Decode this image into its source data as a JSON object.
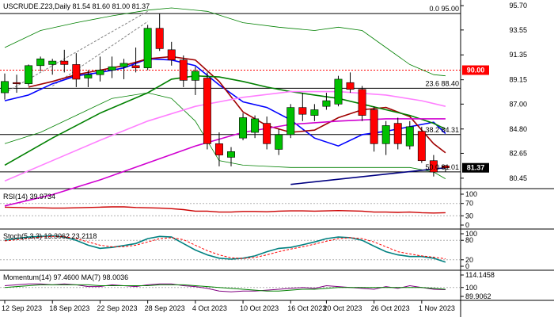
{
  "chart_data": {
    "type": "candlestick",
    "symbol_title": "USCRUDE.Z23,Daily  81.54 81.60 81.00 81.37",
    "dates": [
      "12 Sep 2023",
      "18 Sep 2023",
      "22 Sep 2023",
      "28 Sep 2023",
      "4 Oct 2023",
      "10 Oct 2023",
      "16 Oct 2023",
      "20 Oct 2023",
      "26 Oct 2023",
      "1 Nov 2023"
    ],
    "price_ticks": [
      "95.70",
      "93.55",
      "91.35",
      "89.15",
      "87.00",
      "84.80",
      "82.65",
      "80.45"
    ],
    "price_range": [
      79.6,
      96.2
    ],
    "candles": [
      {
        "o": 88.0,
        "h": 89.7,
        "l": 87.4,
        "c": 89.0
      },
      {
        "o": 88.9,
        "h": 89.6,
        "l": 88.0,
        "c": 88.8
      },
      {
        "o": 88.8,
        "h": 90.5,
        "l": 88.6,
        "c": 90.4
      },
      {
        "o": 90.4,
        "h": 91.2,
        "l": 89.9,
        "c": 91.0
      },
      {
        "o": 90.5,
        "h": 91.0,
        "l": 89.6,
        "c": 90.8
      },
      {
        "o": 90.8,
        "h": 91.8,
        "l": 89.8,
        "c": 90.5
      },
      {
        "o": 90.5,
        "h": 91.5,
        "l": 88.5,
        "c": 89.2
      },
      {
        "o": 89.3,
        "h": 90.0,
        "l": 88.5,
        "c": 89.6
      },
      {
        "o": 89.6,
        "h": 91.2,
        "l": 89.0,
        "c": 90.0
      },
      {
        "o": 90.0,
        "h": 91.2,
        "l": 89.3,
        "c": 90.3
      },
      {
        "o": 90.3,
        "h": 91.0,
        "l": 89.2,
        "c": 90.6
      },
      {
        "o": 90.4,
        "h": 92.0,
        "l": 89.8,
        "c": 90.2
      },
      {
        "o": 90.2,
        "h": 94.0,
        "l": 90.0,
        "c": 93.7
      },
      {
        "o": 93.7,
        "h": 95.0,
        "l": 91.7,
        "c": 91.9
      },
      {
        "o": 91.8,
        "h": 92.5,
        "l": 90.4,
        "c": 90.9
      },
      {
        "o": 90.9,
        "h": 91.3,
        "l": 88.5,
        "c": 89.1
      },
      {
        "o": 89.1,
        "h": 90.3,
        "l": 87.8,
        "c": 89.9
      },
      {
        "o": 89.3,
        "h": 89.8,
        "l": 83.0,
        "c": 83.5
      },
      {
        "o": 83.5,
        "h": 84.5,
        "l": 81.5,
        "c": 82.5
      },
      {
        "o": 82.3,
        "h": 83.2,
        "l": 81.5,
        "c": 82.8
      },
      {
        "o": 84.0,
        "h": 86.2,
        "l": 83.8,
        "c": 85.8
      },
      {
        "o": 84.5,
        "h": 86.0,
        "l": 84.0,
        "c": 85.7
      },
      {
        "o": 85.3,
        "h": 85.9,
        "l": 83.0,
        "c": 83.5
      },
      {
        "o": 83.0,
        "h": 84.8,
        "l": 82.5,
        "c": 84.3
      },
      {
        "o": 84.3,
        "h": 87.0,
        "l": 84.0,
        "c": 86.7
      },
      {
        "o": 86.7,
        "h": 88.0,
        "l": 85.5,
        "c": 86.1
      },
      {
        "o": 86.0,
        "h": 87.0,
        "l": 85.5,
        "c": 86.5
      },
      {
        "o": 86.8,
        "h": 88.0,
        "l": 86.5,
        "c": 87.3
      },
      {
        "o": 87.0,
        "h": 89.5,
        "l": 86.8,
        "c": 89.2
      },
      {
        "o": 88.9,
        "h": 89.8,
        "l": 88.0,
        "c": 88.3
      },
      {
        "o": 88.3,
        "h": 88.6,
        "l": 85.5,
        "c": 86.0
      },
      {
        "o": 86.5,
        "h": 86.8,
        "l": 82.8,
        "c": 83.5
      },
      {
        "o": 83.5,
        "h": 85.5,
        "l": 82.5,
        "c": 85.1
      },
      {
        "o": 85.3,
        "h": 85.8,
        "l": 83.0,
        "c": 83.5
      },
      {
        "o": 83.3,
        "h": 85.5,
        "l": 83.0,
        "c": 85.0
      },
      {
        "o": 84.6,
        "h": 85.0,
        "l": 81.8,
        "c": 82.0
      },
      {
        "o": 82.0,
        "h": 82.5,
        "l": 80.6,
        "c": 81.0
      },
      {
        "o": 81.54,
        "h": 81.6,
        "l": 81.0,
        "c": 81.37
      }
    ],
    "series_moving_averages": [
      {
        "color": "#0000ff",
        "points": [
          [
            0,
            87.3
          ],
          [
            2,
            87.8
          ],
          [
            4,
            88.8
          ],
          [
            6,
            89.5
          ],
          [
            8,
            89.8
          ],
          [
            10,
            90.2
          ],
          [
            12,
            91.0
          ],
          [
            14,
            90.9
          ],
          [
            16,
            90.4
          ],
          [
            18,
            88.7
          ],
          [
            20,
            87.2
          ],
          [
            22,
            86.7
          ],
          [
            24,
            85.6
          ],
          [
            26,
            84.0
          ],
          [
            28,
            83.3
          ],
          [
            30,
            84.3
          ],
          [
            32,
            84.6
          ],
          [
            34,
            85.0
          ],
          [
            36,
            85.4
          ],
          [
            37,
            84.4
          ]
        ]
      },
      {
        "color": "#a00000",
        "points": [
          [
            2,
            88.5
          ],
          [
            4,
            89.0
          ],
          [
            6,
            89.6
          ],
          [
            8,
            90.0
          ],
          [
            10,
            90.4
          ],
          [
            12,
            91.0
          ],
          [
            14,
            91.2
          ],
          [
            16,
            90.9
          ],
          [
            18,
            89.0
          ],
          [
            20,
            86.3
          ],
          [
            22,
            85.1
          ],
          [
            24,
            84.5
          ],
          [
            26,
            84.7
          ],
          [
            28,
            85.8
          ],
          [
            30,
            86.5
          ],
          [
            32,
            86.7
          ],
          [
            34,
            85.9
          ],
          [
            36,
            83.5
          ],
          [
            37,
            82.7
          ]
        ]
      },
      {
        "color": "#008000",
        "points": [
          [
            0,
            81.6
          ],
          [
            4,
            84.0
          ],
          [
            8,
            86.2
          ],
          [
            12,
            88.0
          ],
          [
            14,
            89.2
          ],
          [
            16,
            89.5
          ],
          [
            18,
            89.4
          ],
          [
            20,
            89.0
          ],
          [
            22,
            88.5
          ],
          [
            24,
            88.1
          ],
          [
            26,
            87.8
          ],
          [
            28,
            87.5
          ],
          [
            30,
            87.0
          ],
          [
            32,
            86.5
          ],
          [
            34,
            86.0
          ],
          [
            36,
            85.3
          ],
          [
            37,
            84.8
          ]
        ]
      },
      {
        "color": "#ff80ff",
        "points": [
          [
            0,
            80.2
          ],
          [
            4,
            82.0
          ],
          [
            8,
            83.8
          ],
          [
            12,
            85.5
          ],
          [
            16,
            86.8
          ],
          [
            20,
            87.6
          ],
          [
            24,
            88.1
          ],
          [
            28,
            88.1
          ],
          [
            32,
            87.8
          ],
          [
            35,
            87.3
          ],
          [
            37,
            86.8
          ]
        ]
      },
      {
        "color": "#d000d0",
        "points": [
          [
            0,
            78.0
          ],
          [
            4,
            79.0
          ],
          [
            8,
            80.3
          ],
          [
            12,
            81.8
          ],
          [
            16,
            83.3
          ],
          [
            20,
            84.5
          ],
          [
            24,
            85.2
          ],
          [
            28,
            85.5
          ],
          [
            32,
            85.7
          ],
          [
            37,
            85.7
          ]
        ]
      }
    ],
    "bollinger": [
      {
        "color": "#008000",
        "points": [
          [
            0,
            92.0
          ],
          [
            3,
            93.5
          ],
          [
            6,
            94.2
          ],
          [
            9,
            94.8
          ],
          [
            12,
            95.3
          ],
          [
            14,
            95.5
          ],
          [
            17,
            95.2
          ],
          [
            20,
            94.2
          ],
          [
            23,
            93.8
          ],
          [
            26,
            93.5
          ],
          [
            28,
            93.8
          ],
          [
            30,
            93.5
          ],
          [
            32,
            92.0
          ],
          [
            34,
            90.5
          ],
          [
            36,
            89.6
          ],
          [
            37,
            89.5
          ]
        ]
      },
      {
        "color": "#008000",
        "points": [
          [
            0,
            83.5
          ],
          [
            3,
            84.5
          ],
          [
            6,
            86.0
          ],
          [
            9,
            87.5
          ],
          [
            12,
            88.0
          ],
          [
            14,
            87.5
          ],
          [
            16,
            85.5
          ],
          [
            18,
            82.0
          ],
          [
            20,
            81.6
          ],
          [
            22,
            81.5
          ],
          [
            24,
            81.4
          ],
          [
            26,
            81.4
          ],
          [
            28,
            81.4
          ],
          [
            30,
            81.4
          ],
          [
            32,
            81.4
          ],
          [
            34,
            81.4
          ],
          [
            36,
            81.0
          ],
          [
            37,
            80.4
          ]
        ]
      }
    ],
    "trendlines": [
      {
        "color": "#000080",
        "points": [
          [
            24,
            79.9
          ],
          [
            37,
            81.37
          ]
        ]
      }
    ],
    "fib_levels": [
      {
        "label": "0.0 95.00",
        "value": 95.0,
        "color": "#000000"
      },
      {
        "label": "23.6 88.40",
        "value": 88.4,
        "color": "#000000"
      },
      {
        "label": "38.2 84.31",
        "value": 84.31,
        "color": "#000000"
      },
      {
        "label": "50.0 81.01",
        "value": 81.01,
        "color": "#000000"
      }
    ],
    "resistance_line": {
      "label": "90.00",
      "value": 90.0,
      "color": "#ff0000"
    },
    "current_price": {
      "label": "81.37",
      "value": 81.37,
      "color": "#000000"
    },
    "rsi": {
      "title": "RSI(14) 39.9734",
      "ticks": [
        "100",
        "70",
        "30",
        "0"
      ],
      "color": "#cc0000",
      "values": [
        58,
        57,
        56,
        56,
        55,
        55,
        56,
        57,
        58,
        59,
        59,
        57,
        56,
        55,
        53,
        50,
        45,
        45,
        42,
        42,
        44,
        44,
        43,
        45,
        46,
        46,
        45,
        46,
        47,
        46,
        45,
        42,
        42,
        41,
        42,
        40,
        39,
        40
      ]
    },
    "stochastic": {
      "title": "Stoch(5,3,3) 13.3062 23.2118",
      "ticks": [
        "100",
        "80",
        "20",
        "0"
      ],
      "main_color": "#008080",
      "signal_color": "#ff0000",
      "main": [
        80,
        85,
        90,
        92,
        94,
        90,
        80,
        65,
        55,
        58,
        64,
        70,
        85,
        92,
        90,
        70,
        50,
        35,
        25,
        22,
        25,
        32,
        45,
        55,
        58,
        66,
        75,
        85,
        90,
        88,
        80,
        62,
        45,
        35,
        30,
        30,
        25,
        13
      ],
      "signal": [
        78,
        82,
        86,
        90,
        92,
        91,
        85,
        75,
        65,
        60,
        60,
        65,
        75,
        85,
        88,
        82,
        65,
        48,
        35,
        26,
        24,
        27,
        35,
        45,
        53,
        60,
        68,
        77,
        85,
        88,
        85,
        75,
        60,
        45,
        38,
        32,
        28,
        23
      ]
    },
    "momentum": {
      "title": "Momentum(14) 97.4600  MA(7) 98.0036",
      "ticks": [
        "114.1458",
        "100",
        "89.9062"
      ],
      "main_color": "#800080",
      "ma_color": "#008000",
      "main": [
        102,
        103,
        104,
        104,
        103,
        104,
        103,
        101,
        101,
        103,
        102,
        101,
        103,
        104,
        104,
        102,
        101,
        99,
        96,
        95,
        96,
        96,
        97,
        98,
        99,
        100,
        99,
        102,
        101,
        100,
        99,
        98,
        101,
        99,
        102,
        100,
        98,
        97.5
      ],
      "ma": [
        100,
        101,
        102,
        103,
        103,
        103,
        103,
        103,
        102,
        102,
        102,
        102,
        102,
        103,
        103,
        103,
        102,
        101,
        100,
        99,
        98,
        97,
        96,
        96,
        97,
        98,
        98,
        99,
        100,
        100,
        100,
        100,
        100,
        100,
        100,
        100,
        99,
        98
      ]
    }
  }
}
